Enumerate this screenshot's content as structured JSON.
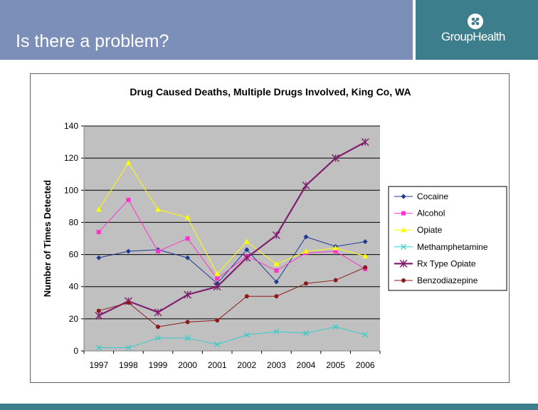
{
  "slide": {
    "title": "Is there a problem?",
    "logo_text": "GroupHealth",
    "colors": {
      "header": "#7b8fb8",
      "brand": "#3d7e8c"
    }
  },
  "chart_data": {
    "type": "line",
    "title": "Drug Caused Deaths, Multiple Drugs Involved, King Co, WA",
    "xlabel": "",
    "ylabel": "Number of Times Detected",
    "categories": [
      "1997",
      "1998",
      "1999",
      "2000",
      "2001",
      "2002",
      "2003",
      "2004",
      "2005",
      "2006"
    ],
    "ylim": [
      0,
      140
    ],
    "yticks": [
      0,
      20,
      40,
      60,
      80,
      100,
      120,
      140
    ],
    "grid": true,
    "legend_position": "right",
    "series": [
      {
        "name": "Cocaine",
        "color": "#1f3a93",
        "marker": "diamond",
        "values": [
          58,
          62,
          63,
          58,
          42,
          63,
          43,
          71,
          65,
          68
        ]
      },
      {
        "name": "Alcohol",
        "color": "#ff33cc",
        "marker": "square",
        "values": [
          74,
          94,
          62,
          70,
          45,
          59,
          50,
          61,
          62,
          51
        ]
      },
      {
        "name": "Opiate",
        "color": "#ffff00",
        "marker": "triangle",
        "values": [
          88,
          117,
          88,
          83,
          48,
          68,
          54,
          62,
          64,
          59
        ]
      },
      {
        "name": "Methamphetamine",
        "color": "#33cccc",
        "marker": "x",
        "values": [
          2,
          2,
          8,
          8,
          4,
          10,
          12,
          11,
          15,
          10
        ]
      },
      {
        "name": "Rx Type Opiate",
        "color": "#7f1f6f",
        "marker": "star",
        "values": [
          22,
          31,
          24,
          35,
          40,
          58,
          72,
          103,
          120,
          130
        ]
      },
      {
        "name": "Benzodiazepine",
        "color": "#8b1a1a",
        "marker": "circle",
        "values": [
          25,
          30,
          15,
          18,
          19,
          34,
          34,
          42,
          44,
          52
        ]
      }
    ]
  }
}
